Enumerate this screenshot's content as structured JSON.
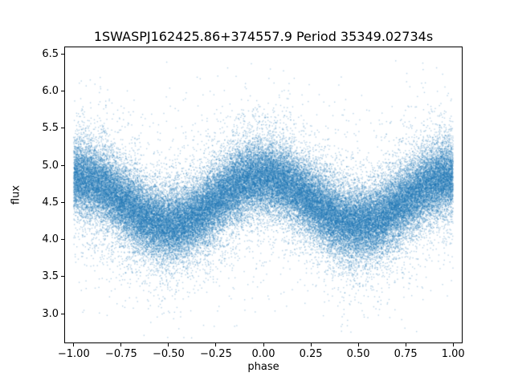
{
  "chart_data": {
    "type": "scatter",
    "title": "1SWASPJ162425.86+374557.9 Period 35349.02734s",
    "xlabel": "phase",
    "ylabel": "flux",
    "xlim": [
      -1.05,
      1.05
    ],
    "ylim": [
      2.6,
      6.6
    ],
    "x_ticks": [
      -1.0,
      -0.75,
      -0.5,
      -0.25,
      0.0,
      0.25,
      0.5,
      0.75,
      1.0
    ],
    "x_tick_labels": [
      "−1.00",
      "−0.75",
      "−0.50",
      "−0.25",
      "0.00",
      "0.25",
      "0.50",
      "0.75",
      "1.00"
    ],
    "y_ticks": [
      3.0,
      3.5,
      4.0,
      4.5,
      5.0,
      5.5,
      6.0,
      6.5
    ],
    "y_tick_labels": [
      "3.0",
      "3.5",
      "4.0",
      "4.5",
      "5.0",
      "5.5",
      "6.0",
      "6.5"
    ],
    "grid": false,
    "legend": "none",
    "marker_color": "#1f77b4",
    "marker_alpha": 0.32,
    "marker_size_px": 1.4,
    "approx_point_count": 65000,
    "trend": {
      "description": "Dense phase-folded stellar light curve; mean flux varies sinusoidally with phase (one cycle per unit of phase), maxima near phase 0 and ±1, minima near ±0.5, with heavy vertical scatter and sparse outliers",
      "flux_mean": 4.52,
      "flux_amplitude": 0.32,
      "phase_of_maximum": 0.0,
      "noise_sigma_core": 0.22,
      "noise_sigma_broad": 0.4,
      "broad_fraction": 0.22,
      "outlier_sigma": 0.75,
      "outlier_fraction": 0.03,
      "observed_flux_range": [
        2.7,
        6.4
      ],
      "phase_range": [
        -1.0,
        1.0
      ]
    }
  }
}
